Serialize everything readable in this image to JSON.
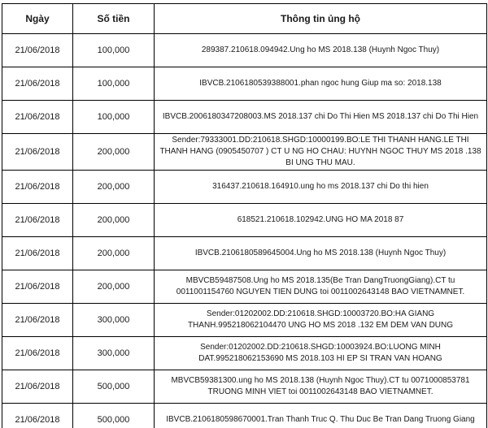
{
  "colors": {
    "border": "#000000",
    "text": "#1a1a1a",
    "background": "#ffffff"
  },
  "table": {
    "headers": [
      "Ngày",
      "Số tiền",
      "Thông tin ủng hộ"
    ],
    "rows": [
      {
        "date": "21/06/2018",
        "amount": "100,000",
        "info": "289387.210618.094942.Ung ho MS 2018.138 (Huynh Ngoc Thuy)"
      },
      {
        "date": "21/06/2018",
        "amount": "100,000",
        "info": "IBVCB.2106180539388001.phan ngoc hung Giup ma so: 2018.138"
      },
      {
        "date": "21/06/2018",
        "amount": "100,000",
        "info": "IBVCB.2006180347208003.MS 2018.137 chi Do Thi Hien MS 2018.137 chi Do Thi Hien"
      },
      {
        "date": "21/06/2018",
        "amount": "200,000",
        "info": "Sender:79333001.DD:210618.SHGD:10000199.BO:LE THI THANH HANG.LE THI THANH HANG (0905450707 ) CT U NG HO CHAU: HUYNH NGOC THUY MS 2018 .138 BI UNG THU MAU."
      },
      {
        "date": "21/06/2018",
        "amount": "200,000",
        "info": "316437.210618.164910.ung ho ms 2018.137 chi Do thi hien"
      },
      {
        "date": "21/06/2018",
        "amount": "200,000",
        "info": "618521.210618.102942.UNG HO MA 2018 87"
      },
      {
        "date": "21/06/2018",
        "amount": "200,000",
        "info": "IBVCB.2106180589645004.Ung ho MS 2018.138 (Huynh Ngoc Thuy)"
      },
      {
        "date": "21/06/2018",
        "amount": "200,000",
        "info": "MBVCB59487508.Ung ho MS 2018.135(Be Tran DangTruongGiang).CT tu 0011001154760 NGUYEN TIEN DUNG toi 0011002643148 BAO VIETNAMNET."
      },
      {
        "date": "21/06/2018",
        "amount": "300,000",
        "info": "Sender:01202002.DD:210618.SHGD:10003720.BO:HA GIANG THANH.995218062104470 UNG HO MS 2018 .132 EM DEM VAN DUNG"
      },
      {
        "date": "21/06/2018",
        "amount": "300,000",
        "info": "Sender:01202002.DD:210618.SHGD:10003924.BO:LUONG MINH DAT.995218062153690 MS 2018.103 HI EP SI TRAN VAN HOANG"
      },
      {
        "date": "21/06/2018",
        "amount": "500,000",
        "info": "MBVCB59381300.ung ho MS 2018.138 (Huynh Ngoc Thuy).CT tu 0071000853781 TRUONG MINH VIET toi 0011002643148 BAO VIETNAMNET."
      },
      {
        "date": "21/06/2018",
        "amount": "500,000",
        "info": "IBVCB.2106180598670001.Tran Thanh Truc Q. Thu Duc Be Tran Dang Truong Giang"
      }
    ]
  }
}
